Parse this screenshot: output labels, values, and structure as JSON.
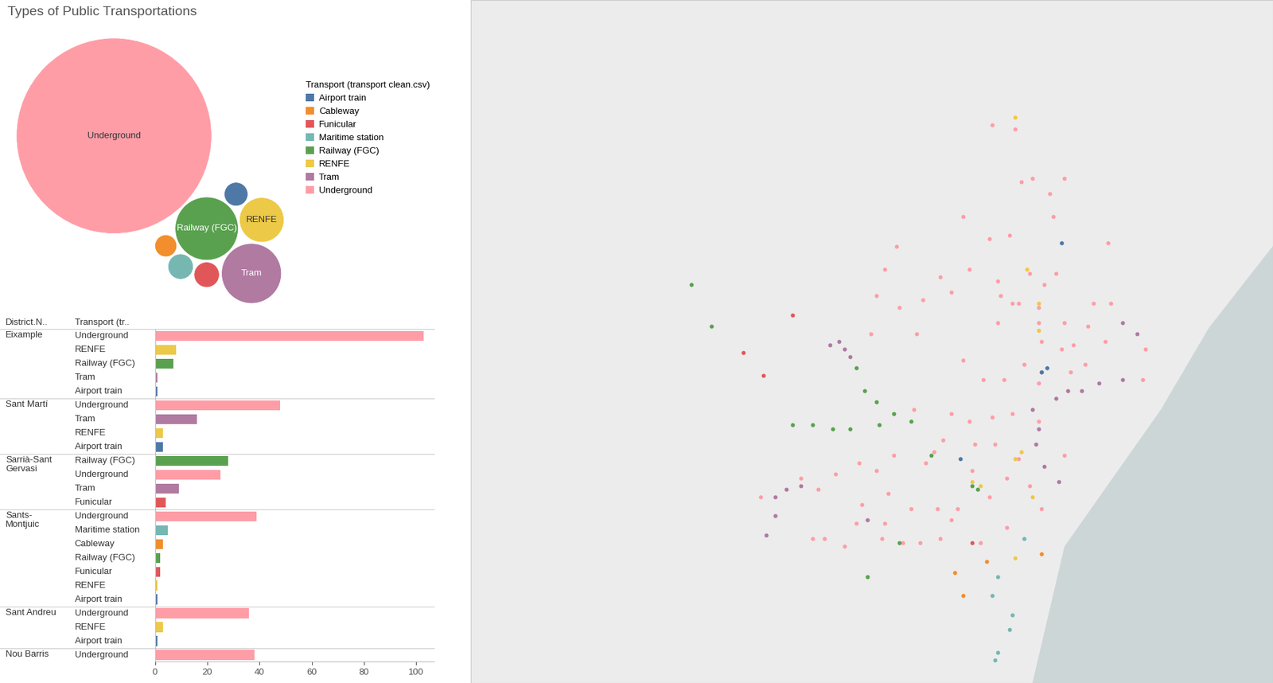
{
  "chart_data": [
    {
      "type": "bubble",
      "title": "Types of Public Transportations",
      "legend_title": "Transport (transport clean.csv)",
      "legend": "upper left",
      "categories": [
        "Airport train",
        "Cableway",
        "Funicular",
        "Maritime station",
        "Railway (FGC)",
        "RENFE",
        "Tram",
        "Underground"
      ],
      "values": [
        7,
        6,
        8,
        8,
        50,
        25,
        45,
        480
      ],
      "colors": [
        "#4e79a7",
        "#f28e2b",
        "#e15759",
        "#76b7b2",
        "#59a14f",
        "#edc948",
        "#b07aa1",
        "#ff9da7"
      ],
      "labeled": [
        "Underground",
        "RENFE",
        "Tram",
        "Railway (FGC)"
      ]
    },
    {
      "type": "bar",
      "orientation": "horizontal",
      "column_headers": [
        "District.N..",
        "Transport (tr.."
      ],
      "xlim": [
        0,
        107
      ],
      "xticks": [
        0,
        20,
        40,
        60,
        80,
        100
      ],
      "grid": false,
      "groups": [
        {
          "district": "Eixample",
          "categories": [
            "Underground",
            "RENFE",
            "Railway (FGC)",
            "Tram",
            "Airport train"
          ],
          "values": [
            103,
            8,
            7,
            1,
            1
          ]
        },
        {
          "district": "Sant Martí",
          "categories": [
            "Underground",
            "Tram",
            "RENFE",
            "Airport train"
          ],
          "values": [
            48,
            16,
            3,
            3
          ]
        },
        {
          "district": "Sarrià-Sant Gervasi",
          "categories": [
            "Railway (FGC)",
            "Underground",
            "Tram",
            "Funicular"
          ],
          "values": [
            28,
            25,
            9,
            4
          ]
        },
        {
          "district": "Sants-Montjuic",
          "categories": [
            "Underground",
            "Maritime station",
            "Cableway",
            "Railway (FGC)",
            "Funicular",
            "RENFE",
            "Airport train"
          ],
          "values": [
            39,
            5,
            3,
            2,
            2,
            1,
            1
          ]
        },
        {
          "district": "Sant Andreu",
          "categories": [
            "Underground",
            "RENFE",
            "Airport train"
          ],
          "values": [
            36,
            3,
            1
          ]
        },
        {
          "district": "Nou Barris",
          "categories": [
            "Underground"
          ],
          "values": [
            38
          ]
        }
      ]
    },
    {
      "type": "scatter",
      "tick_labels": false,
      "xlim": [
        2.02,
        2.297
      ],
      "ylim": [
        41.32,
        41.5
      ],
      "series": [
        {
          "name": "Airport train",
          "color": "#4e79a7",
          "x": [
            2.224,
            2.217,
            2.219,
            2.189
          ],
          "y": [
            41.436,
            41.402,
            41.403,
            41.379
          ]
        },
        {
          "name": "Cableway",
          "color": "#f28e2b",
          "x": [
            2.198,
            2.187,
            2.19,
            2.217
          ],
          "y": [
            41.352,
            41.349,
            41.343,
            41.354
          ]
        },
        {
          "name": "Funicular",
          "color": "#e15759",
          "x": [
            2.131,
            2.114,
            2.121,
            2.193
          ],
          "y": [
            41.417,
            41.407,
            41.401,
            41.357
          ]
        },
        {
          "name": "Maritime station",
          "color": "#76b7b2",
          "x": [
            2.211,
            2.202,
            2.2,
            2.207,
            2.206,
            2.202,
            2.201
          ],
          "y": [
            41.358,
            41.348,
            41.343,
            41.338,
            41.334,
            41.328,
            41.326
          ]
        },
        {
          "name": "Railway (FGC)",
          "color": "#59a14f",
          "x": [
            2.096,
            2.103,
            2.153,
            2.156,
            2.16,
            2.166,
            2.172,
            2.131,
            2.138,
            2.145,
            2.151,
            2.161,
            2.179,
            2.193,
            2.195,
            2.168,
            2.157
          ],
          "y": [
            41.425,
            41.414,
            41.403,
            41.397,
            41.394,
            41.391,
            41.389,
            41.388,
            41.388,
            41.387,
            41.387,
            41.388,
            41.38,
            41.372,
            41.371,
            41.357,
            41.348
          ]
        },
        {
          "name": "RENFE",
          "color": "#edc948",
          "x": [
            2.208,
            2.212,
            2.216,
            2.216,
            2.21,
            2.208,
            2.193,
            2.196,
            2.214,
            2.208
          ],
          "y": [
            41.469,
            41.429,
            41.42,
            41.413,
            41.381,
            41.379,
            41.373,
            41.372,
            41.369,
            41.353
          ]
        },
        {
          "name": "Tram",
          "color": "#b07aa1",
          "x": [
            2.144,
            2.147,
            2.149,
            2.151,
            2.217,
            2.222,
            2.226,
            2.231,
            2.237,
            2.245,
            2.25,
            2.245,
            2.214,
            2.216,
            2.215,
            2.218,
            2.223,
            2.129,
            2.134,
            2.125,
            2.125,
            2.122,
            2.157
          ],
          "y": [
            41.409,
            41.41,
            41.408,
            41.406,
            41.402,
            41.395,
            41.397,
            41.397,
            41.399,
            41.4,
            41.412,
            41.415,
            41.392,
            41.387,
            41.383,
            41.377,
            41.373,
            41.371,
            41.372,
            41.369,
            41.364,
            41.359,
            41.363
          ]
        },
        {
          "name": "Underground",
          "color": "#ff9da7",
          "x": [
            2.2,
            2.208,
            2.214,
            2.21,
            2.225,
            2.22,
            2.19,
            2.221,
            2.199,
            2.206,
            2.167,
            2.24,
            2.213,
            2.192,
            2.182,
            2.163,
            2.202,
            2.222,
            2.218,
            2.203,
            2.207,
            2.16,
            2.168,
            2.176,
            2.186,
            2.209,
            2.216,
            2.235,
            2.241,
            2.225,
            2.202,
            2.216,
            2.158,
            2.174,
            2.233,
            2.19,
            2.217,
            2.224,
            2.228,
            2.239,
            2.253,
            2.211,
            2.232,
            2.252,
            2.227,
            2.197,
            2.204,
            2.216,
            2.173,
            2.186,
            2.192,
            2.2,
            2.207,
            2.216,
            2.183,
            2.18,
            2.177,
            2.166,
            2.154,
            2.16,
            2.164,
            2.172,
            2.181,
            2.186,
            2.194,
            2.201,
            2.209,
            2.213,
            2.225,
            2.205,
            2.193,
            2.199,
            2.188,
            2.155,
            2.163,
            2.153,
            2.14,
            2.134,
            2.12,
            2.138,
            2.149,
            2.162,
            2.169,
            2.175,
            2.182,
            2.196,
            2.205,
            2.217,
            2.142,
            2.146
          ],
          "y": [
            41.467,
            41.466,
            41.453,
            41.452,
            41.453,
            41.449,
            41.443,
            41.443,
            41.437,
            41.438,
            41.435,
            41.436,
            41.428,
            41.429,
            41.427,
            41.429,
            41.426,
            41.428,
            41.425,
            41.422,
            41.42,
            41.422,
            41.419,
            41.421,
            41.423,
            41.42,
            41.419,
            41.42,
            41.42,
            41.415,
            41.415,
            41.415,
            41.412,
            41.412,
            41.414,
            41.405,
            41.41,
            41.408,
            41.409,
            41.41,
            41.408,
            41.404,
            41.404,
            41.4,
            41.402,
            41.4,
            41.4,
            41.399,
            41.392,
            41.391,
            41.389,
            41.39,
            41.391,
            41.389,
            41.384,
            41.381,
            41.378,
            41.38,
            41.378,
            41.376,
            41.37,
            41.366,
            41.366,
            41.363,
            41.383,
            41.383,
            41.379,
            41.372,
            41.38,
            41.374,
            41.376,
            41.369,
            41.366,
            41.367,
            41.362,
            41.362,
            41.371,
            41.374,
            41.369,
            41.358,
            41.356,
            41.358,
            41.357,
            41.357,
            41.358,
            41.357,
            41.361,
            41.366,
            41.358,
            41.375
          ]
        }
      ]
    }
  ]
}
